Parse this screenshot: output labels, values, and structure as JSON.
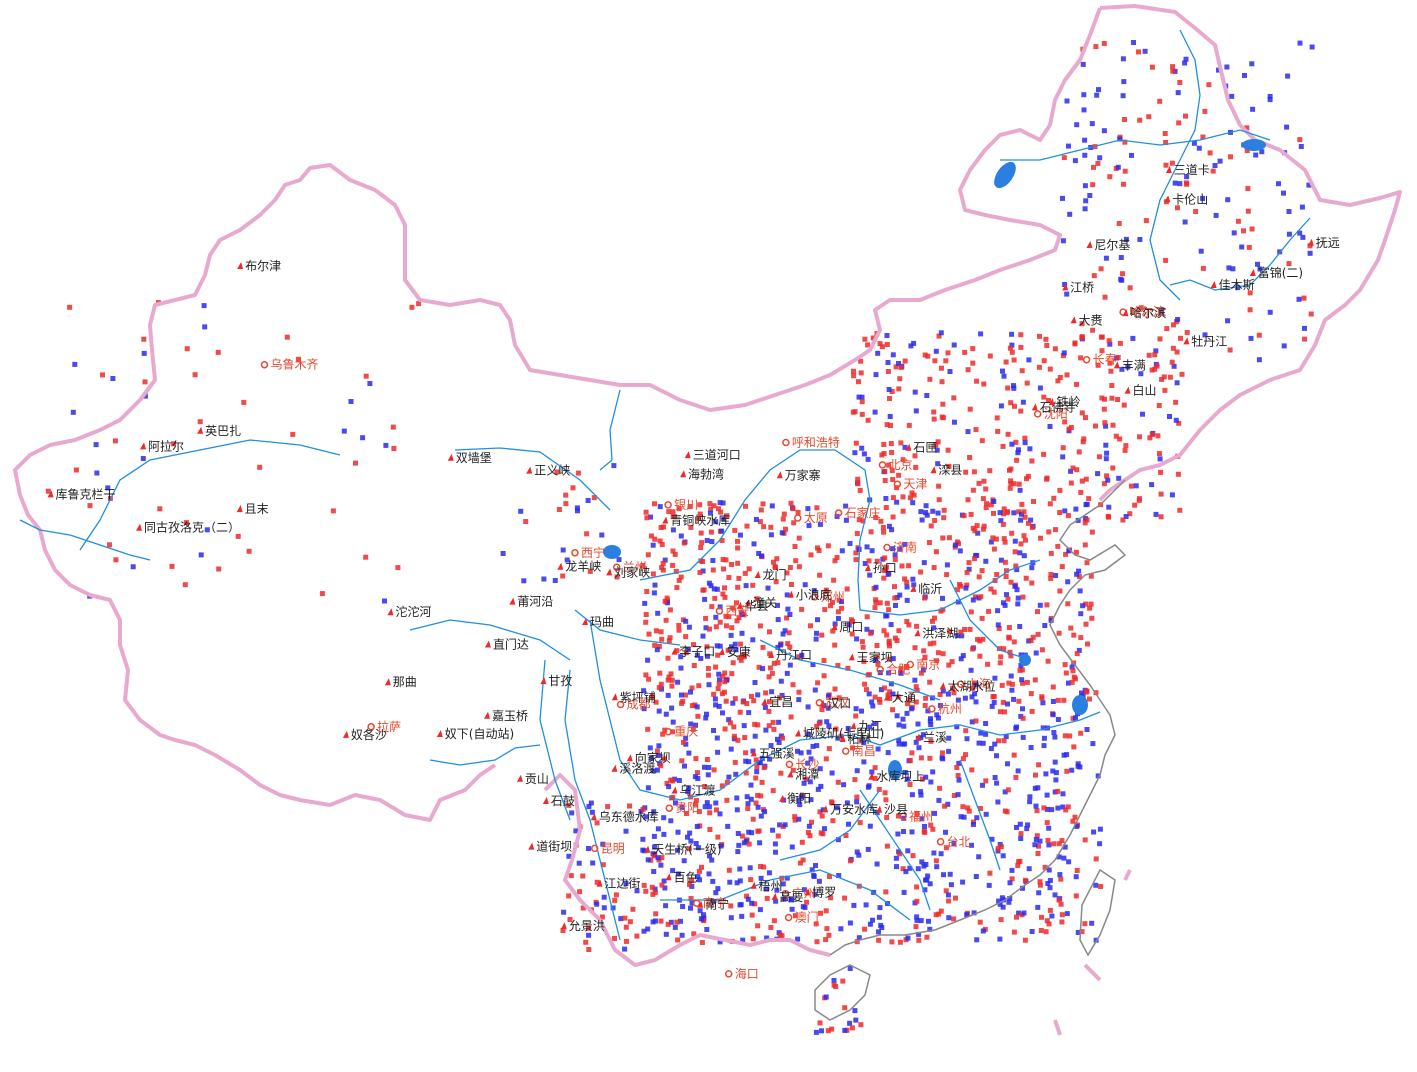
{
  "colors": {
    "border": "#e8a9cf",
    "border_inner": "#888888",
    "river": "#1f8fe0",
    "lake": "#2a7fe0",
    "station_red": "#ee2a2a",
    "station_blue": "#2a2aee",
    "city": "#e8492e",
    "label": "#222222"
  },
  "cities": [
    {
      "name": "乌鲁木齐",
      "lon": 87.6,
      "lat": 43.8
    },
    {
      "name": "拉萨",
      "lon": 91.1,
      "lat": 29.65
    },
    {
      "name": "西宁",
      "lon": 101.78,
      "lat": 36.62
    },
    {
      "name": "兰州",
      "lon": 103.82,
      "lat": 36.06
    },
    {
      "name": "银川",
      "lon": 106.27,
      "lat": 38.47
    },
    {
      "name": "呼和浩特",
      "lon": 111.75,
      "lat": 40.84
    },
    {
      "name": "太原",
      "lon": 112.55,
      "lat": 37.87
    },
    {
      "name": "石家庄",
      "lon": 114.5,
      "lat": 38.04
    },
    {
      "name": "北京",
      "lon": 116.4,
      "lat": 39.9
    },
    {
      "name": "天津",
      "lon": 117.2,
      "lat": 39.13
    },
    {
      "name": "济南",
      "lon": 117.0,
      "lat": 36.65
    },
    {
      "name": "郑州",
      "lon": 113.65,
      "lat": 34.76
    },
    {
      "name": "西安",
      "lon": 108.95,
      "lat": 34.27
    },
    {
      "name": "沈阳",
      "lon": 123.43,
      "lat": 41.8
    },
    {
      "name": "长春",
      "lon": 125.32,
      "lat": 43.9
    },
    {
      "name": "哈尔滨",
      "lon": 126.63,
      "lat": 45.75
    },
    {
      "name": "合肥",
      "lon": 117.27,
      "lat": 31.86
    },
    {
      "name": "南京",
      "lon": 118.78,
      "lat": 32.04
    },
    {
      "name": "上海",
      "lon": 121.47,
      "lat": 31.23
    },
    {
      "name": "杭州",
      "lon": 120.15,
      "lat": 30.28
    },
    {
      "name": "武汉",
      "lon": 114.3,
      "lat": 30.6
    },
    {
      "name": "长沙",
      "lon": 112.98,
      "lat": 28.2
    },
    {
      "name": "南昌",
      "lon": 115.89,
      "lat": 28.68
    },
    {
      "name": "福州",
      "lon": 119.3,
      "lat": 26.08
    },
    {
      "name": "台北",
      "lon": 121.5,
      "lat": 25.05
    },
    {
      "name": "广州",
      "lon": 113.27,
      "lat": 23.13
    },
    {
      "name": "南宁",
      "lon": 108.37,
      "lat": 22.82
    },
    {
      "name": "海口",
      "lon": 110.35,
      "lat": 20.02
    },
    {
      "name": "贵阳",
      "lon": 106.71,
      "lat": 26.57
    },
    {
      "name": "昆明",
      "lon": 102.71,
      "lat": 25.04
    },
    {
      "name": "成都",
      "lon": 104.06,
      "lat": 30.67
    },
    {
      "name": "重庆",
      "lon": 106.55,
      "lat": 29.57
    },
    {
      "name": "澳门",
      "lon": 113.54,
      "lat": 22.19
    }
  ],
  "stations": [
    {
      "name": "布尔津",
      "lon": 86.86,
      "lat": 47.7
    },
    {
      "name": "英巴扎",
      "lon": 84.1,
      "lat": 41.2
    },
    {
      "name": "阿拉尔",
      "lon": 81.3,
      "lat": 40.55
    },
    {
      "name": "库鲁克栏干",
      "lon": 76.5,
      "lat": 38.6
    },
    {
      "name": "同古孜洛克（二）",
      "lon": 80.5,
      "lat": 37.35
    },
    {
      "name": "且末",
      "lon": 85.5,
      "lat": 38.15
    },
    {
      "name": "双墙堡",
      "lon": 95.8,
      "lat": 40.3
    },
    {
      "name": "正义峡",
      "lon": 99.5,
      "lat": 39.85
    },
    {
      "name": "三道河口",
      "lon": 107.0,
      "lat": 40.45
    },
    {
      "name": "海勃湾",
      "lon": 106.8,
      "lat": 39.7
    },
    {
      "name": "青铜峡水库",
      "lon": 106.0,
      "lat": 37.9
    },
    {
      "name": "万家寨",
      "lon": 111.4,
      "lat": 39.6
    },
    {
      "name": "龙羊峡",
      "lon": 100.9,
      "lat": 36.1
    },
    {
      "name": "刘家峡",
      "lon": 103.3,
      "lat": 35.9
    },
    {
      "name": "龙门",
      "lon": 110.6,
      "lat": 35.7
    },
    {
      "name": "潼关",
      "lon": 110.2,
      "lat": 34.6
    },
    {
      "name": "小浪底",
      "lon": 112.3,
      "lat": 34.9
    },
    {
      "name": "华县",
      "lon": 109.8,
      "lat": 34.5
    },
    {
      "name": "莆河沿",
      "lon": 98.5,
      "lat": 34.7
    },
    {
      "name": "沱沱河",
      "lon": 92.4,
      "lat": 34.2
    },
    {
      "name": "直门达",
      "lon": 97.2,
      "lat": 33.0
    },
    {
      "name": "玛曲",
      "lon": 102.1,
      "lat": 33.95
    },
    {
      "name": "甘孜",
      "lon": 99.95,
      "lat": 31.6
    },
    {
      "name": "那曲",
      "lon": 92.0,
      "lat": 31.45
    },
    {
      "name": "嘉玉桥",
      "lon": 97.0,
      "lat": 30.2
    },
    {
      "name": "奴下(自动站)",
      "lon": 94.5,
      "lat": 29.45
    },
    {
      "name": "奴各沙",
      "lon": 89.6,
      "lat": 29.35
    },
    {
      "name": "贡山",
      "lon": 98.6,
      "lat": 27.75
    },
    {
      "name": "石鼓",
      "lon": 99.95,
      "lat": 26.9
    },
    {
      "name": "道街坝",
      "lon": 99.1,
      "lat": 25.1
    },
    {
      "name": "允景洪",
      "lon": 100.8,
      "lat": 22.0
    },
    {
      "name": "乌东德水库",
      "lon": 102.5,
      "lat": 26.3
    },
    {
      "name": "向家坝",
      "lon": 104.4,
      "lat": 28.6
    },
    {
      "name": "溪洛渡",
      "lon": 103.6,
      "lat": 28.2
    },
    {
      "name": "紫坪铺",
      "lon": 103.6,
      "lat": 31.0
    },
    {
      "name": "李子口",
      "lon": 106.6,
      "lat": 32.75
    },
    {
      "name": "安康",
      "lon": 109.0,
      "lat": 32.7
    },
    {
      "name": "丹江口",
      "lon": 111.5,
      "lat": 32.55
    },
    {
      "name": "宜昌",
      "lon": 111.3,
      "lat": 30.7
    },
    {
      "name": "汉口",
      "lon": 114.3,
      "lat": 30.6
    },
    {
      "name": "九江",
      "lon": 116.0,
      "lat": 29.7
    },
    {
      "name": "大通",
      "lon": 117.6,
      "lat": 30.8
    },
    {
      "name": "洪泽湖",
      "lon": 118.8,
      "lat": 33.3
    },
    {
      "name": "太湖水位",
      "lon": 120.4,
      "lat": 31.2
    },
    {
      "name": "王家坝",
      "lon": 115.6,
      "lat": 32.4
    },
    {
      "name": "周口",
      "lon": 114.6,
      "lat": 33.6
    },
    {
      "name": "临沂",
      "lon": 118.35,
      "lat": 35.05
    },
    {
      "name": "孙口",
      "lon": 116.0,
      "lat": 35.9
    },
    {
      "name": "石匣",
      "lon": 117.4,
      "lat": 40.6
    },
    {
      "name": "滦县",
      "lon": 118.7,
      "lat": 39.7
    },
    {
      "name": "石佛寺",
      "lon": 123.1,
      "lat": 42.1
    },
    {
      "name": "铁岭",
      "lon": 123.85,
      "lat": 42.3
    },
    {
      "name": "丰满",
      "lon": 126.6,
      "lat": 43.7
    },
    {
      "name": "白山",
      "lon": 127.3,
      "lat": 42.7
    },
    {
      "name": "牡丹江",
      "lon": 129.6,
      "lat": 44.6
    },
    {
      "name": "佳木斯",
      "lon": 130.35,
      "lat": 46.8
    },
    {
      "name": "富锦(二)",
      "lon": 132.0,
      "lat": 47.25
    },
    {
      "name": "抚远",
      "lon": 134.3,
      "lat": 48.4
    },
    {
      "name": "江桥",
      "lon": 123.7,
      "lat": 46.8
    },
    {
      "name": "大赉",
      "lon": 124.3,
      "lat": 45.5
    },
    {
      "name": "哈尔滨",
      "lon": 126.6,
      "lat": 45.75
    },
    {
      "name": "尼尔基",
      "lon": 124.5,
      "lat": 48.45
    },
    {
      "name": "卡伦山",
      "lon": 127.6,
      "lat": 50.2
    },
    {
      "name": "三道卡",
      "lon": 127.45,
      "lat": 51.35
    },
    {
      "name": "五强溪",
      "lon": 110.9,
      "lat": 28.7
    },
    {
      "name": "城陵矶(七里山)",
      "lon": 113.15,
      "lat": 29.45
    },
    {
      "name": "湘潭",
      "lon": 112.9,
      "lat": 27.85
    },
    {
      "name": "衡阳",
      "lon": 112.55,
      "lat": 26.9
    },
    {
      "name": "万安水库",
      "lon": 114.9,
      "lat": 26.45
    },
    {
      "name": "柘林",
      "lon": 115.5,
      "lat": 29.2
    },
    {
      "name": "水库坝上",
      "lon": 117.2,
      "lat": 27.7
    },
    {
      "name": "兰溪",
      "lon": 119.45,
      "lat": 29.2
    },
    {
      "name": "沙县",
      "lon": 117.8,
      "lat": 26.4
    },
    {
      "name": "乌江渡",
      "lon": 106.8,
      "lat": 27.3
    },
    {
      "name": "天生桥(一级)",
      "lon": 105.4,
      "lat": 25.0
    },
    {
      "name": "江边街",
      "lon": 102.8,
      "lat": 23.7
    },
    {
      "name": "百色",
      "lon": 106.6,
      "lat": 23.9
    },
    {
      "name": "南宁",
      "lon": 108.4,
      "lat": 22.8
    },
    {
      "name": "梧州",
      "lon": 111.3,
      "lat": 23.5
    },
    {
      "name": "博罗",
      "lon": 114.3,
      "lat": 23.2
    },
    {
      "name": "高要",
      "lon": 112.5,
      "lat": 23.05
    }
  ]
}
